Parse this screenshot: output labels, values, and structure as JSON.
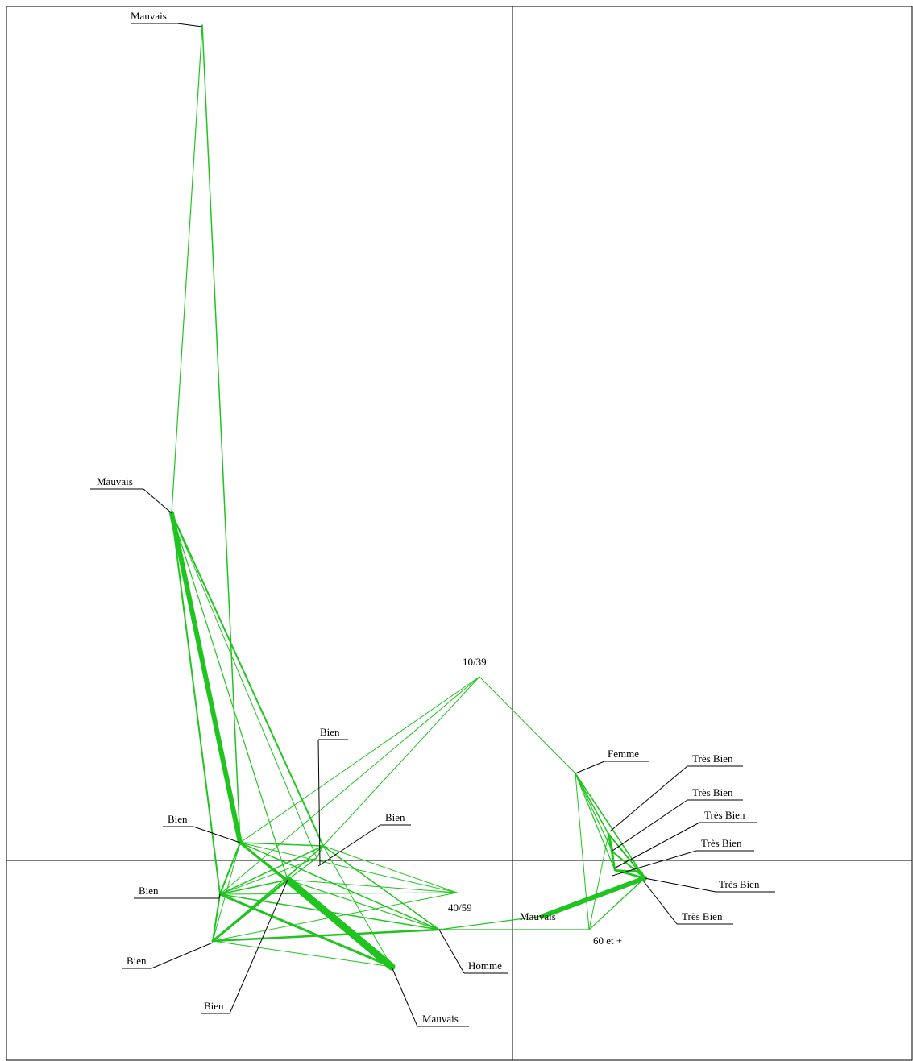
{
  "colors": {
    "edge": "#1fc41f",
    "axis": "#000000",
    "leader": "#000000"
  },
  "labels": {
    "mauvais_top": "Mauvais",
    "mauvais_mid": "Mauvais",
    "age_10_39": "10/39",
    "bien_upper": "Bien",
    "femme": "Femme",
    "tres_bien_1": "Très Bien",
    "tres_bien_2": "Très Bien",
    "tres_bien_3": "Très Bien",
    "tres_bien_4": "Très Bien",
    "tres_bien_5": "Très Bien",
    "tres_bien_6": "Très Bien",
    "bien_left": "Bien",
    "bien_right": "Bien",
    "bien_mid": "Bien",
    "age_40_59": "40/59",
    "mauvais_center": "Mauvais",
    "bien_low": "Bien",
    "homme": "Homme",
    "age_60_plus": "60 et +",
    "bien_bottom": "Bien",
    "mauvais_bottom": "Mauvais"
  }
}
